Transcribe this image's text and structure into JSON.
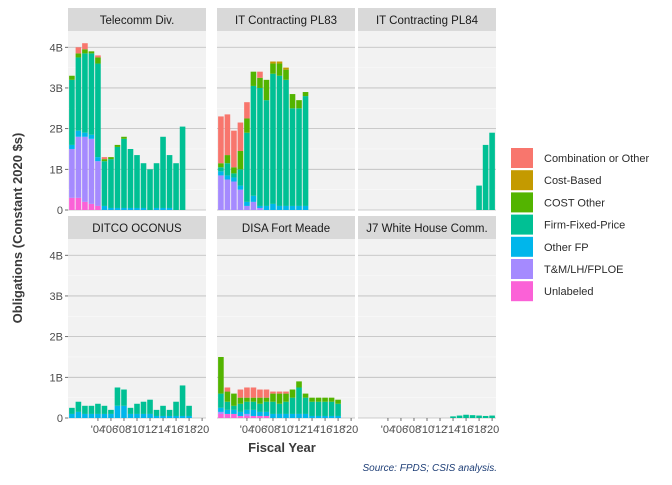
{
  "chart_data": {
    "type": "bar",
    "stacked": true,
    "faceted": true,
    "ylabel": "Obligations (Constant 2020 $s)",
    "xlabel": "Fiscal Year",
    "source": "Source: FPDS; CSIS analysis.",
    "ylim": [
      0,
      4.4
    ],
    "y_ticks": [
      {
        "value": 0,
        "label": "0"
      },
      {
        "value": 1,
        "label": "1B"
      },
      {
        "value": 2,
        "label": "2B"
      },
      {
        "value": 3,
        "label": "3B"
      },
      {
        "value": 4,
        "label": "4B"
      }
    ],
    "x": [
      2000,
      2001,
      2002,
      2003,
      2004,
      2005,
      2006,
      2007,
      2008,
      2009,
      2010,
      2011,
      2012,
      2013,
      2014,
      2015,
      2016,
      2017,
      2018,
      2019,
      2020
    ],
    "x_ticks": [
      {
        "value": 2004,
        "label": "'04"
      },
      {
        "value": 2006,
        "label": "'06"
      },
      {
        "value": 2008,
        "label": "'08"
      },
      {
        "value": 2010,
        "label": "'10"
      },
      {
        "value": 2012,
        "label": "'12"
      },
      {
        "value": 2014,
        "label": "'14"
      },
      {
        "value": 2016,
        "label": "'16"
      },
      {
        "value": 2018,
        "label": "'18"
      },
      {
        "value": 2020,
        "label": "'20"
      }
    ],
    "legend_position": "right",
    "series": [
      {
        "name": "Combination or Other",
        "color": "#F8766D"
      },
      {
        "name": "Cost-Based",
        "color": "#C49A00"
      },
      {
        "name": "COST Other",
        "color": "#53B400"
      },
      {
        "name": "Firm-Fixed-Price",
        "color": "#00C094"
      },
      {
        "name": "Other FP",
        "color": "#00B6EB"
      },
      {
        "name": "T&M/LH/FPLOE",
        "color": "#A58AFF"
      },
      {
        "name": "Unlabeled",
        "color": "#FB61D7"
      }
    ],
    "panels": [
      {
        "title": "Telecomm Div.",
        "bars": [
          {
            "year": 2000,
            "values": [
              0,
              0,
              0.1,
              1.6,
              0.1,
              1.2,
              0.3
            ]
          },
          {
            "year": 2001,
            "values": [
              0.15,
              0,
              0.1,
              1.8,
              0.15,
              1.5,
              0.3
            ]
          },
          {
            "year": 2002,
            "values": [
              0.15,
              0,
              0.1,
              1.95,
              0.1,
              1.6,
              0.2
            ]
          },
          {
            "year": 2003,
            "values": [
              0,
              0,
              0.05,
              2.0,
              0.1,
              1.6,
              0.15
            ]
          },
          {
            "year": 2004,
            "values": [
              0.05,
              0,
              0.15,
              2.3,
              0.1,
              1.1,
              0.1
            ]
          },
          {
            "year": 2005,
            "values": [
              0.05,
              0,
              0.05,
              1.1,
              0.1,
              0,
              0
            ]
          },
          {
            "year": 2006,
            "values": [
              0,
              0,
              0.05,
              1.2,
              0.05,
              0,
              0
            ]
          },
          {
            "year": 2007,
            "values": [
              0,
              0,
              0.05,
              1.5,
              0.05,
              0,
              0
            ]
          },
          {
            "year": 2008,
            "values": [
              0,
              0,
              0.05,
              1.7,
              0.05,
              0,
              0
            ]
          },
          {
            "year": 2009,
            "values": [
              0,
              0,
              0,
              1.45,
              0.05,
              0,
              0
            ]
          },
          {
            "year": 2010,
            "values": [
              0,
              0,
              0,
              1.3,
              0.05,
              0,
              0
            ]
          },
          {
            "year": 2011,
            "values": [
              0,
              0,
              0,
              1.1,
              0.05,
              0,
              0
            ]
          },
          {
            "year": 2012,
            "values": [
              0,
              0,
              0,
              1.0,
              0,
              0,
              0
            ]
          },
          {
            "year": 2013,
            "values": [
              0,
              0,
              0,
              1.1,
              0.05,
              0,
              0
            ]
          },
          {
            "year": 2014,
            "values": [
              0,
              0,
              0,
              1.75,
              0.05,
              0,
              0
            ]
          },
          {
            "year": 2015,
            "values": [
              0,
              0,
              0,
              1.3,
              0.05,
              0,
              0
            ]
          },
          {
            "year": 2016,
            "values": [
              0,
              0,
              0,
              1.15,
              0,
              0,
              0
            ]
          },
          {
            "year": 2017,
            "values": [
              0,
              0,
              0,
              2.05,
              0,
              0,
              0
            ]
          }
        ]
      },
      {
        "title": "IT Contracting PL83",
        "bars": [
          {
            "year": 2000,
            "values": [
              1.15,
              0,
              0.1,
              0.1,
              0.1,
              0.85,
              0
            ]
          },
          {
            "year": 2001,
            "values": [
              1.0,
              0,
              0.2,
              0.3,
              0.1,
              0.75,
              0
            ]
          },
          {
            "year": 2002,
            "values": [
              0.9,
              0,
              0.15,
              0.1,
              0.1,
              0.7,
              0
            ]
          },
          {
            "year": 2003,
            "values": [
              0.7,
              0,
              0.45,
              0.4,
              0.1,
              0.5,
              0
            ]
          },
          {
            "year": 2004,
            "values": [
              0.4,
              0,
              0.35,
              1.7,
              0.1,
              0.1,
              0
            ]
          },
          {
            "year": 2005,
            "values": [
              0,
              0,
              0.35,
              2.7,
              0.15,
              0.2,
              0
            ]
          },
          {
            "year": 2006,
            "values": [
              0.15,
              0,
              0.25,
              2.9,
              0.05,
              0.05,
              0
            ]
          },
          {
            "year": 2007,
            "values": [
              0,
              0,
              0.5,
              2.6,
              0.1,
              0,
              0
            ]
          },
          {
            "year": 2008,
            "values": [
              0,
              0.05,
              0.25,
              3.2,
              0.15,
              0,
              0
            ]
          },
          {
            "year": 2009,
            "values": [
              0,
              0.05,
              0.3,
              3.2,
              0.1,
              0,
              0
            ]
          },
          {
            "year": 2010,
            "values": [
              0,
              0.05,
              0.25,
              3.1,
              0.1,
              0,
              0
            ]
          },
          {
            "year": 2011,
            "values": [
              0,
              0,
              0.35,
              2.4,
              0.1,
              0,
              0
            ]
          },
          {
            "year": 2012,
            "values": [
              0,
              0,
              0.2,
              2.4,
              0.1,
              0,
              0
            ]
          },
          {
            "year": 2013,
            "values": [
              0,
              0,
              0.1,
              2.7,
              0.1,
              0,
              0
            ]
          }
        ]
      },
      {
        "title": "IT Contracting PL84",
        "bars": [
          {
            "year": 2018,
            "values": [
              0,
              0,
              0,
              0.6,
              0,
              0,
              0
            ]
          },
          {
            "year": 2019,
            "values": [
              0,
              0,
              0,
              1.6,
              0,
              0,
              0
            ]
          },
          {
            "year": 2020,
            "values": [
              0,
              0,
              0,
              1.9,
              0,
              0,
              0
            ]
          }
        ]
      },
      {
        "title": "DITCO OCONUS",
        "bars": [
          {
            "year": 2000,
            "values": [
              0,
              0,
              0,
              0.15,
              0.1,
              0,
              0
            ]
          },
          {
            "year": 2001,
            "values": [
              0,
              0,
              0,
              0.25,
              0.15,
              0,
              0
            ]
          },
          {
            "year": 2002,
            "values": [
              0,
              0,
              0,
              0.2,
              0.1,
              0,
              0
            ]
          },
          {
            "year": 2003,
            "values": [
              0,
              0,
              0,
              0.2,
              0.1,
              0,
              0
            ]
          },
          {
            "year": 2004,
            "values": [
              0,
              0,
              0,
              0.25,
              0.1,
              0,
              0
            ]
          },
          {
            "year": 2005,
            "values": [
              0,
              0,
              0,
              0.2,
              0.1,
              0,
              0
            ]
          },
          {
            "year": 2006,
            "values": [
              0,
              0,
              0,
              0.1,
              0.1,
              0,
              0
            ]
          },
          {
            "year": 2007,
            "values": [
              0,
              0,
              0,
              0.45,
              0.3,
              0,
              0
            ]
          },
          {
            "year": 2008,
            "values": [
              0,
              0,
              0,
              0.4,
              0.3,
              0,
              0
            ]
          },
          {
            "year": 2009,
            "values": [
              0,
              0,
              0,
              0.15,
              0.1,
              0,
              0
            ]
          },
          {
            "year": 2010,
            "values": [
              0,
              0,
              0,
              0.25,
              0.1,
              0,
              0
            ]
          },
          {
            "year": 2011,
            "values": [
              0,
              0,
              0,
              0.3,
              0.1,
              0,
              0
            ]
          },
          {
            "year": 2012,
            "values": [
              0,
              0,
              0,
              0.35,
              0.1,
              0,
              0
            ]
          },
          {
            "year": 2013,
            "values": [
              0,
              0,
              0,
              0.15,
              0.05,
              0,
              0
            ]
          },
          {
            "year": 2014,
            "values": [
              0,
              0,
              0,
              0.25,
              0.05,
              0,
              0
            ]
          },
          {
            "year": 2015,
            "values": [
              0,
              0,
              0,
              0.15,
              0.05,
              0,
              0
            ]
          },
          {
            "year": 2016,
            "values": [
              0,
              0,
              0,
              0.35,
              0.05,
              0,
              0
            ]
          },
          {
            "year": 2017,
            "values": [
              0,
              0,
              0,
              0.75,
              0.05,
              0,
              0
            ]
          },
          {
            "year": 2018,
            "values": [
              0,
              0,
              0,
              0.25,
              0.05,
              0,
              0
            ]
          }
        ]
      },
      {
        "title": "DISA Fort Meade",
        "bars": [
          {
            "year": 2000,
            "values": [
              0,
              0,
              0.9,
              0.35,
              0.1,
              0.05,
              0.1
            ]
          },
          {
            "year": 2001,
            "values": [
              0.1,
              0,
              0.25,
              0.2,
              0.1,
              0,
              0.1
            ]
          },
          {
            "year": 2002,
            "values": [
              0,
              0,
              0.3,
              0.1,
              0.1,
              0,
              0.1
            ]
          },
          {
            "year": 2003,
            "values": [
              0.2,
              0,
              0.15,
              0.2,
              0.1,
              0,
              0.05
            ]
          },
          {
            "year": 2004,
            "values": [
              0.25,
              0,
              0.1,
              0.2,
              0.1,
              0.05,
              0.05
            ]
          },
          {
            "year": 2005,
            "values": [
              0.25,
              0,
              0.1,
              0.2,
              0.15,
              0,
              0.05
            ]
          },
          {
            "year": 2006,
            "values": [
              0.2,
              0,
              0.15,
              0.2,
              0.1,
              0,
              0.05
            ]
          },
          {
            "year": 2007,
            "values": [
              0.2,
              0,
              0.1,
              0.25,
              0.1,
              0,
              0.05
            ]
          },
          {
            "year": 2008,
            "values": [
              0.05,
              0,
              0.2,
              0.3,
              0.1,
              0,
              0
            ]
          },
          {
            "year": 2009,
            "values": [
              0.05,
              0,
              0.25,
              0.25,
              0.1,
              0,
              0
            ]
          },
          {
            "year": 2010,
            "values": [
              0.05,
              0,
              0.2,
              0.3,
              0.1,
              0,
              0
            ]
          },
          {
            "year": 2011,
            "values": [
              0,
              0,
              0.2,
              0.4,
              0.1,
              0,
              0
            ]
          },
          {
            "year": 2012,
            "values": [
              0,
              0,
              0.15,
              0.65,
              0.1,
              0,
              0
            ]
          },
          {
            "year": 2013,
            "values": [
              0,
              0,
              0.1,
              0.4,
              0.1,
              0,
              0
            ]
          },
          {
            "year": 2014,
            "values": [
              0,
              0,
              0.1,
              0.35,
              0.05,
              0,
              0
            ]
          },
          {
            "year": 2015,
            "values": [
              0,
              0,
              0.1,
              0.35,
              0.05,
              0,
              0
            ]
          },
          {
            "year": 2016,
            "values": [
              0,
              0,
              0.1,
              0.35,
              0.05,
              0,
              0
            ]
          },
          {
            "year": 2017,
            "values": [
              0,
              0,
              0.1,
              0.35,
              0.05,
              0,
              0
            ]
          },
          {
            "year": 2018,
            "values": [
              0,
              0,
              0.1,
              0.3,
              0.05,
              0,
              0
            ]
          }
        ]
      },
      {
        "title": "J7 White House Comm.",
        "bars": [
          {
            "year": 2014,
            "values": [
              0,
              0,
              0,
              0.04,
              0,
              0,
              0
            ]
          },
          {
            "year": 2015,
            "values": [
              0,
              0,
              0,
              0.06,
              0,
              0,
              0
            ]
          },
          {
            "year": 2016,
            "values": [
              0,
              0,
              0,
              0.08,
              0,
              0,
              0
            ]
          },
          {
            "year": 2017,
            "values": [
              0,
              0,
              0,
              0.07,
              0,
              0,
              0
            ]
          },
          {
            "year": 2018,
            "values": [
              0,
              0,
              0,
              0.06,
              0,
              0,
              0
            ]
          },
          {
            "year": 2019,
            "values": [
              0,
              0,
              0,
              0.05,
              0,
              0,
              0
            ]
          },
          {
            "year": 2020,
            "values": [
              0,
              0,
              0,
              0.06,
              0,
              0,
              0
            ]
          }
        ]
      }
    ]
  }
}
